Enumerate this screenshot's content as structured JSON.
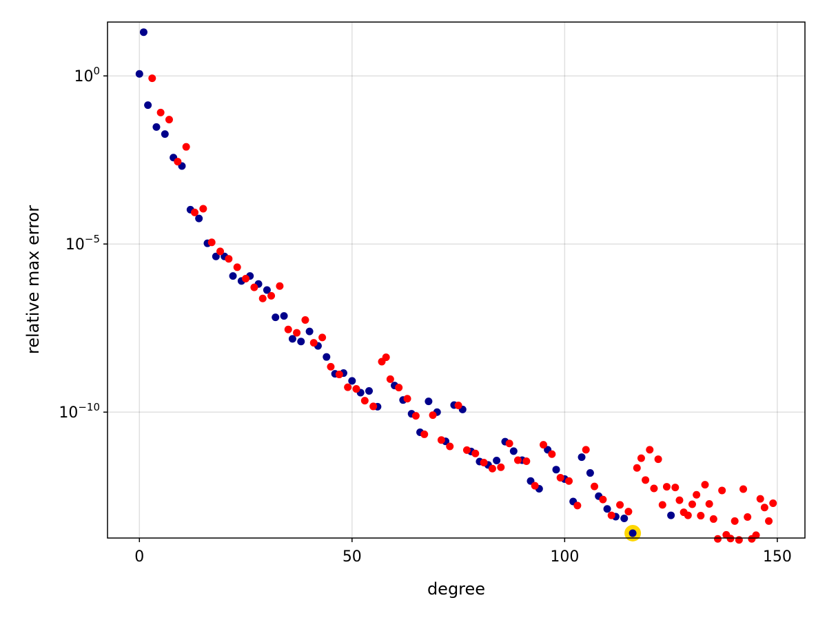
{
  "chart_data": {
    "type": "scatter",
    "title": "",
    "xlabel": "degree",
    "ylabel": "relative max error",
    "yscale": "log10",
    "xlim": [
      -7.5,
      156.5
    ],
    "ylim": [
      1.8e-14,
      40
    ],
    "grid": true,
    "x_ticks": [
      {
        "value": 0,
        "label": "0"
      },
      {
        "value": 50,
        "label": "50"
      },
      {
        "value": 100,
        "label": "100"
      },
      {
        "value": 150,
        "label": "150"
      }
    ],
    "y_ticks": [
      {
        "value": 1,
        "base": "10",
        "exp": "0"
      },
      {
        "value": 1e-05,
        "base": "10",
        "exp": "−5"
      },
      {
        "value": 1e-10,
        "base": "10",
        "exp": "−10"
      }
    ],
    "colors": {
      "navy": "#00008b",
      "red": "#ff0000",
      "highlight": "#ffd700"
    },
    "series": [
      {
        "color": "#00008b",
        "points": [
          [
            0,
            1.15
          ],
          [
            1,
            20.0
          ],
          [
            2,
            0.135
          ],
          [
            4,
            0.0302
          ],
          [
            6,
            0.0186
          ],
          [
            8,
            0.00372
          ],
          [
            10,
            0.00209
          ],
          [
            12,
            0.000105
          ],
          [
            14,
            5.75e-05
          ],
          [
            16,
            1.05e-05
          ],
          [
            18,
            4.27e-06
          ],
          [
            20,
            4.27e-06
          ],
          [
            22,
            1.12e-06
          ],
          [
            24,
            7.94e-07
          ],
          [
            26,
            1.12e-06
          ],
          [
            28,
            6.46e-07
          ],
          [
            30,
            4.27e-07
          ],
          [
            32,
            6.61e-08
          ],
          [
            34,
            7.24e-08
          ],
          [
            36,
            1.51e-08
          ],
          [
            38,
            1.26e-08
          ],
          [
            40,
            2.51e-08
          ],
          [
            42,
            9.33e-09
          ],
          [
            44,
            4.37e-09
          ],
          [
            46,
            1.38e-09
          ],
          [
            48,
            1.45e-09
          ],
          [
            50,
            8.51e-10
          ],
          [
            52,
            3.8e-10
          ],
          [
            54,
            4.27e-10
          ],
          [
            56,
            1.45e-10
          ],
          [
            60,
            6.17e-10
          ],
          [
            62,
            2.29e-10
          ],
          [
            64,
            8.91e-11
          ],
          [
            66,
            2.51e-11
          ],
          [
            68,
            2.09e-10
          ],
          [
            70,
            1e-10
          ],
          [
            72,
            1.35e-11
          ],
          [
            74,
            1.62e-10
          ],
          [
            76,
            1.2e-10
          ],
          [
            78,
            6.76e-12
          ],
          [
            80,
            3.39e-12
          ],
          [
            82,
            2.69e-12
          ],
          [
            84,
            3.63e-12
          ],
          [
            86,
            1.32e-11
          ],
          [
            88,
            6.92e-12
          ],
          [
            90,
            3.72e-12
          ],
          [
            92,
            8.91e-13
          ],
          [
            94,
            5.25e-13
          ],
          [
            96,
            7.59e-12
          ],
          [
            98,
            1.95e-12
          ],
          [
            100,
            1.02e-12
          ],
          [
            102,
            2.19e-13
          ],
          [
            104,
            4.57e-12
          ],
          [
            106,
            1.55e-12
          ],
          [
            108,
            3.16e-13
          ],
          [
            110,
            1.32e-13
          ],
          [
            112,
            7.76e-14
          ],
          [
            114,
            6.92e-14
          ],
          [
            116,
            2.51e-14
          ],
          [
            125,
            8.51e-14
          ]
        ]
      },
      {
        "color": "#ff0000",
        "points": [
          [
            3,
            0.851
          ],
          [
            5,
            0.0813
          ],
          [
            7,
            0.0501
          ],
          [
            9,
            0.00282
          ],
          [
            11,
            0.00776
          ],
          [
            13,
            8.71e-05
          ],
          [
            15,
            0.000112
          ],
          [
            17,
            1.12e-05
          ],
          [
            19,
            6.03e-06
          ],
          [
            21,
            3.63e-06
          ],
          [
            23,
            2.04e-06
          ],
          [
            25,
            9.33e-07
          ],
          [
            27,
            5.13e-07
          ],
          [
            29,
            2.4e-07
          ],
          [
            31,
            2.88e-07
          ],
          [
            33,
            5.62e-07
          ],
          [
            35,
            2.88e-08
          ],
          [
            37,
            2.29e-08
          ],
          [
            39,
            5.5e-08
          ],
          [
            41,
            1.15e-08
          ],
          [
            43,
            1.66e-08
          ],
          [
            45,
            2.24e-09
          ],
          [
            47,
            1.32e-09
          ],
          [
            49,
            5.5e-10
          ],
          [
            51,
            4.9e-10
          ],
          [
            53,
            2.19e-10
          ],
          [
            55,
            1.48e-10
          ],
          [
            57,
            3.16e-09
          ],
          [
            58,
            4.27e-09
          ],
          [
            59,
            9.55e-10
          ],
          [
            61,
            5.37e-10
          ],
          [
            63,
            2.51e-10
          ],
          [
            65,
            7.76e-11
          ],
          [
            67,
            2.19e-11
          ],
          [
            69,
            8.13e-11
          ],
          [
            71,
            1.48e-11
          ],
          [
            73,
            9.55e-12
          ],
          [
            75,
            1.58e-10
          ],
          [
            77,
            7.41e-12
          ],
          [
            79,
            5.89e-12
          ],
          [
            81,
            3.16e-12
          ],
          [
            83,
            2.09e-12
          ],
          [
            85,
            2.29e-12
          ],
          [
            87,
            1.17e-11
          ],
          [
            89,
            3.72e-12
          ],
          [
            91,
            3.47e-12
          ],
          [
            93,
            6.46e-13
          ],
          [
            95,
            1.07e-11
          ],
          [
            97,
            5.62e-12
          ],
          [
            99,
            1.12e-12
          ],
          [
            101,
            8.91e-13
          ],
          [
            103,
            1.66e-13
          ],
          [
            105,
            7.59e-12
          ],
          [
            107,
            6.17e-13
          ],
          [
            109,
            2.51e-13
          ],
          [
            111,
            8.51e-14
          ],
          [
            113,
            1.74e-13
          ],
          [
            115,
            1.1e-13
          ],
          [
            117,
            2.19e-12
          ],
          [
            118,
            4.27e-12
          ],
          [
            119,
            9.55e-13
          ],
          [
            120,
            7.59e-12
          ],
          [
            121,
            5.37e-13
          ],
          [
            122,
            3.98e-12
          ],
          [
            123,
            1.74e-13
          ],
          [
            124,
            6.03e-13
          ],
          [
            126,
            5.75e-13
          ],
          [
            127,
            2.4e-13
          ],
          [
            128,
            1.05e-13
          ],
          [
            129,
            8.51e-14
          ],
          [
            130,
            1.82e-13
          ],
          [
            131,
            3.47e-13
          ],
          [
            132,
            8.32e-14
          ],
          [
            133,
            6.92e-13
          ],
          [
            134,
            1.86e-13
          ],
          [
            135,
            6.61e-14
          ],
          [
            136,
            1.7e-14
          ],
          [
            137,
            4.68e-13
          ],
          [
            138,
            2.24e-14
          ],
          [
            139,
            1.74e-14
          ],
          [
            140,
            5.75e-14
          ],
          [
            141,
            1.58e-14
          ],
          [
            142,
            5.13e-13
          ],
          [
            143,
            7.59e-14
          ],
          [
            144,
            1.7e-14
          ],
          [
            145,
            2.19e-14
          ],
          [
            146,
            2.63e-13
          ],
          [
            147,
            1.45e-13
          ],
          [
            148,
            5.75e-14
          ],
          [
            149,
            1.95e-13
          ]
        ]
      }
    ],
    "highlight_point": {
      "x": 116,
      "y": 2.51e-14,
      "color": "#ffd700"
    }
  }
}
